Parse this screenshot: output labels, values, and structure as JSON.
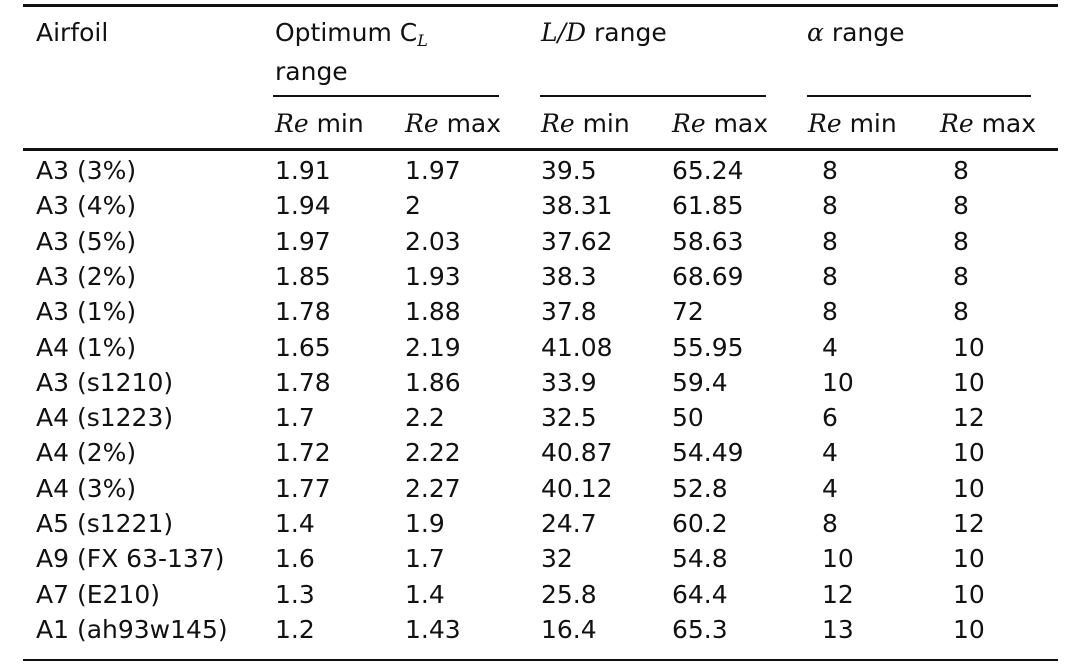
{
  "table": {
    "headers": {
      "airfoil": "Airfoil",
      "cl_prefix": "Optimum C",
      "cl_sub": "L",
      "cl_suffix": "range",
      "ld_italic": "L/D",
      "ld_suffix": " range",
      "alpha_symbol": "α",
      "alpha_suffix": " range",
      "re": "Re",
      "min": " min",
      "max": " max"
    },
    "rows": [
      [
        "A3 (3%)",
        "1.91",
        "1.97",
        "39.5",
        "65.24",
        "8",
        "8"
      ],
      [
        "A3 (4%)",
        "1.94",
        "2",
        "38.31",
        "61.85",
        "8",
        "8"
      ],
      [
        "A3 (5%)",
        "1.97",
        "2.03",
        "37.62",
        "58.63",
        "8",
        "8"
      ],
      [
        "A3 (2%)",
        "1.85",
        "1.93",
        "38.3",
        "68.69",
        "8",
        "8"
      ],
      [
        "A3 (1%)",
        "1.78",
        "1.88",
        "37.8",
        "72",
        "8",
        "8"
      ],
      [
        "A4 (1%)",
        "1.65",
        "2.19",
        "41.08",
        "55.95",
        "4",
        "10"
      ],
      [
        "A3 (s1210)",
        "1.78",
        "1.86",
        "33.9",
        "59.4",
        "10",
        "10"
      ],
      [
        "A4 (s1223)",
        "1.7",
        "2.2",
        "32.5",
        "50",
        "6",
        "12"
      ],
      [
        "A4 (2%)",
        "1.72",
        "2.22",
        "40.87",
        "54.49",
        "4",
        "10"
      ],
      [
        "A4 (3%)",
        "1.77",
        "2.27",
        "40.12",
        "52.8",
        "4",
        "10"
      ],
      [
        "A5 (s1221)",
        "1.4",
        "1.9",
        "24.7",
        "60.2",
        "8",
        "12"
      ],
      [
        "A9 (FX 63-137)",
        "1.6",
        "1.7",
        "32",
        "54.8",
        "10",
        "10"
      ],
      [
        "A7 (E210)",
        "1.3",
        "1.4",
        "25.8",
        "64.4",
        "12",
        "10"
      ],
      [
        "A1 (ah93w145)",
        "1.2",
        "1.43",
        "16.4",
        "65.3",
        "13",
        "10"
      ]
    ]
  }
}
